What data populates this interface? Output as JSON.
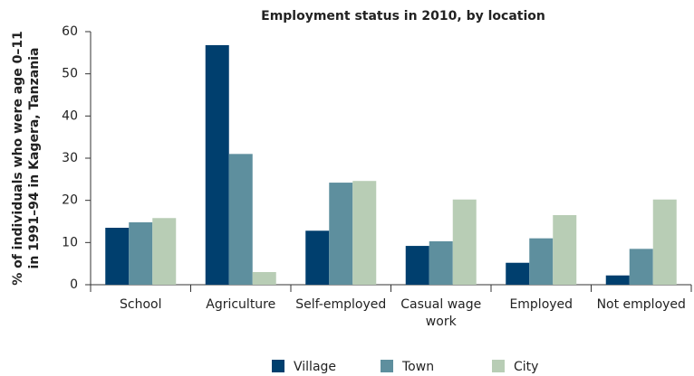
{
  "chart_data": {
    "type": "bar",
    "title": "Employment status in 2010, by location",
    "ylabel": [
      "% of individuals who were age 0–11",
      "in 1991–94 in Kagera, Tanzania"
    ],
    "categories": [
      "School",
      "Agriculture",
      "Self-employed",
      "Casual wage work",
      "Employed",
      "Not employed"
    ],
    "series": [
      {
        "name": "Village",
        "color": "#003f6e",
        "values": [
          13.5,
          56.8,
          12.8,
          9.2,
          5.2,
          2.2
        ]
      },
      {
        "name": "Town",
        "color": "#5e8f9e",
        "values": [
          14.8,
          31,
          24.2,
          10.3,
          11,
          8.5
        ]
      },
      {
        "name": "City",
        "color": "#b8cdb5",
        "values": [
          15.8,
          3,
          24.6,
          20.2,
          16.5,
          20.2
        ]
      }
    ],
    "ylim": [
      0,
      60
    ],
    "yticks": [
      0,
      10,
      20,
      30,
      40,
      50,
      60
    ],
    "grid": false,
    "legend": "bottom"
  }
}
